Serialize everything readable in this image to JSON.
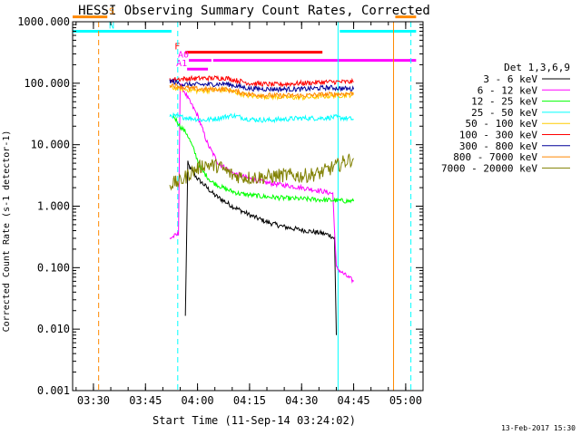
{
  "chart_data": {
    "type": "line",
    "title": "HESSI Observing Summary Count Rates, Corrected",
    "xlabel": "Start Time (11-Sep-14 03:24:02)",
    "ylabel": "Corrected Count Rate (s-1 detector-1)",
    "x_tick_labels": [
      "03:30",
      "03:45",
      "04:00",
      "04:15",
      "04:30",
      "04:45",
      "05:00"
    ],
    "x_tick_minutes": [
      210,
      225,
      240,
      255,
      270,
      285,
      300
    ],
    "xlim_minutes": [
      204.0,
      305.0
    ],
    "y_tick_labels": [
      "1000.000",
      "100.000",
      "10.000",
      "1.000",
      "0.100",
      "0.010",
      "0.001"
    ],
    "ylim": [
      0.001,
      1000
    ],
    "y_scale": "log",
    "legend_title": "Det 1,3,6,9",
    "legend_position": "right",
    "series": [
      {
        "name": "3 - 6 keV",
        "color": "#000000",
        "points": [
          [
            236.5,
            0.016
          ],
          [
            237.2,
            5.0
          ],
          [
            238,
            4.0
          ],
          [
            240,
            2.8
          ],
          [
            242,
            2.2
          ],
          [
            245,
            1.5
          ],
          [
            250,
            1.0
          ],
          [
            255,
            0.72
          ],
          [
            260,
            0.55
          ],
          [
            265,
            0.46
          ],
          [
            270,
            0.41
          ],
          [
            275,
            0.37
          ],
          [
            278,
            0.34
          ],
          [
            279.5,
            0.3
          ],
          [
            280,
            0.008
          ]
        ]
      },
      {
        "name": "6 - 12 keV",
        "color": "#ff00ff",
        "points": [
          [
            232,
            0.3
          ],
          [
            234.5,
            0.35
          ],
          [
            235,
            100
          ],
          [
            237,
            60
          ],
          [
            240,
            30
          ],
          [
            243,
            10
          ],
          [
            246,
            5
          ],
          [
            250,
            3.5
          ],
          [
            255,
            2.8
          ],
          [
            260,
            2.4
          ],
          [
            265,
            2.2
          ],
          [
            270,
            2.0
          ],
          [
            275,
            1.8
          ],
          [
            279,
            1.6
          ],
          [
            280,
            0.1
          ],
          [
            282,
            0.08
          ],
          [
            285,
            0.06
          ]
        ]
      },
      {
        "name": "12 - 25 keV",
        "color": "#00ff00",
        "points": [
          [
            233,
            30
          ],
          [
            235,
            20
          ],
          [
            237,
            15
          ],
          [
            239,
            8
          ],
          [
            241,
            4
          ],
          [
            244,
            2.5
          ],
          [
            248,
            1.9
          ],
          [
            252,
            1.6
          ],
          [
            258,
            1.45
          ],
          [
            265,
            1.35
          ],
          [
            272,
            1.3
          ],
          [
            278,
            1.25
          ],
          [
            285,
            1.2
          ]
        ]
      },
      {
        "name": "25 - 50 keV",
        "color": "#00ffff",
        "points": [
          [
            232,
            30
          ],
          [
            238,
            27
          ],
          [
            242,
            25
          ],
          [
            246,
            27
          ],
          [
            250,
            30
          ],
          [
            255,
            26
          ],
          [
            260,
            25
          ],
          [
            265,
            26
          ],
          [
            270,
            27
          ],
          [
            275,
            27
          ],
          [
            280,
            28
          ],
          [
            285,
            26
          ]
        ]
      },
      {
        "name": "50 - 100 keV",
        "color": "#ffcc00",
        "points": [
          [
            232,
            85
          ],
          [
            240,
            75
          ],
          [
            248,
            78
          ],
          [
            255,
            62
          ],
          [
            262,
            60
          ],
          [
            270,
            58
          ],
          [
            278,
            62
          ],
          [
            285,
            65
          ]
        ]
      },
      {
        "name": "100 - 300 keV",
        "color": "#ff0000",
        "points": [
          [
            232,
            115
          ],
          [
            240,
            120
          ],
          [
            248,
            122
          ],
          [
            255,
            100
          ],
          [
            262,
            95
          ],
          [
            270,
            100
          ],
          [
            278,
            105
          ],
          [
            285,
            105
          ]
        ]
      },
      {
        "name": "300 - 800 keV",
        "color": "#000099",
        "points": [
          [
            232,
            110
          ],
          [
            236,
            95
          ],
          [
            242,
            95
          ],
          [
            248,
            98
          ],
          [
            255,
            82
          ],
          [
            262,
            80
          ],
          [
            270,
            80
          ],
          [
            278,
            85
          ],
          [
            285,
            80
          ]
        ]
      },
      {
        "name": "800 - 7000 keV",
        "color": "#ff8800",
        "points": [
          [
            232,
            95
          ],
          [
            238,
            82
          ],
          [
            242,
            80
          ],
          [
            248,
            80
          ],
          [
            255,
            66
          ],
          [
            262,
            63
          ],
          [
            270,
            63
          ],
          [
            278,
            66
          ],
          [
            285,
            68
          ]
        ]
      },
      {
        "name": "7000 - 20000 keV",
        "color": "#808000",
        "points": [
          [
            232,
            2.3
          ],
          [
            235,
            2.5
          ],
          [
            238,
            3.5
          ],
          [
            242,
            4.8
          ],
          [
            246,
            4.5
          ],
          [
            250,
            3.2
          ],
          [
            255,
            2.9
          ],
          [
            260,
            3.0
          ],
          [
            265,
            3.2
          ],
          [
            270,
            3.1
          ],
          [
            275,
            3.4
          ],
          [
            280,
            4.5
          ],
          [
            283,
            5.5
          ],
          [
            285,
            6.0
          ]
        ]
      }
    ],
    "flag_bars": [
      {
        "label": "S",
        "color": "#ff8800",
        "ranges_minutes": [
          [
            204,
            214
          ],
          [
            297,
            303
          ]
        ],
        "y": 1200
      },
      {
        "label": "N",
        "color": "#00ffff",
        "ranges_minutes": [
          [
            204,
            232.5
          ],
          [
            281,
            303
          ]
        ],
        "y": 700
      },
      {
        "label": "F",
        "color": "#ff0000",
        "ranges_minutes": [
          [
            236.5,
            276
          ]
        ],
        "y": 320
      },
      {
        "label": "A0",
        "color": "#ff00ff",
        "ranges_minutes": [
          [
            237.5,
            244
          ],
          [
            244.5,
            303
          ]
        ],
        "y": 235
      },
      {
        "label": "A1",
        "color": "#ff00ff",
        "ranges_minutes": [
          [
            237,
            243
          ]
        ],
        "y": 170
      }
    ],
    "vertical_lines": [
      {
        "color": "#00ffff",
        "style": "solid",
        "x_minutes": [
          280.5,
          305.0
        ]
      },
      {
        "color": "#00ffff",
        "style": "dashed",
        "x_minutes": [
          234.3,
          301.5
        ]
      },
      {
        "color": "#ff8800",
        "style": "solid",
        "x_minutes": [
          204.0,
          296.5
        ]
      },
      {
        "color": "#ff8800",
        "style": "dashed",
        "x_minutes": [
          211.5
        ]
      }
    ],
    "footer_timestamp": "13-Feb-2017 15:30"
  }
}
